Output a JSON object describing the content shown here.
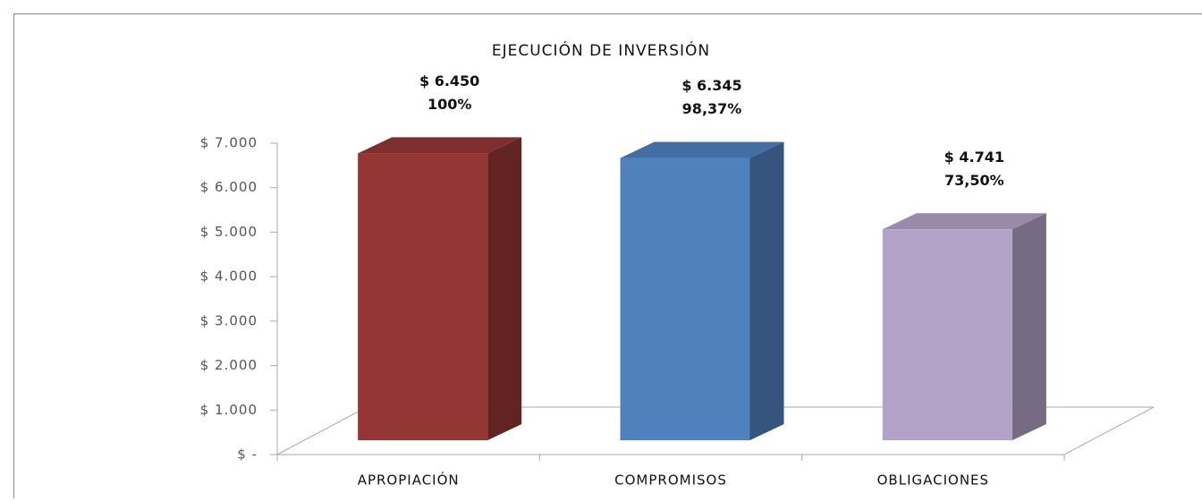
{
  "chart_data": {
    "type": "bar3d",
    "title": "EJECUCIÓN DE INVERSIÓN",
    "categories": [
      "APROPIACIÓN",
      "COMPROMISOS",
      "OBLIGACIONES"
    ],
    "values": [
      6450,
      6345,
      4741
    ],
    "value_labels": [
      "$ 6.450",
      "$ 6.345",
      "$ 4.741"
    ],
    "percentages": [
      100,
      98.37,
      73.5
    ],
    "percentage_labels": [
      "100%",
      "98,37%",
      "73,50%"
    ],
    "colors": [
      "#943634",
      "#4f81bd",
      "#b3a2c7"
    ],
    "ylim": [
      0,
      7000
    ],
    "yticks": [
      {
        "value": 0,
        "label": "$ -"
      },
      {
        "value": 1000,
        "label": "$ 1.000"
      },
      {
        "value": 2000,
        "label": "$ 2.000"
      },
      {
        "value": 3000,
        "label": "$ 3.000"
      },
      {
        "value": 4000,
        "label": "$ 4.000"
      },
      {
        "value": 5000,
        "label": "$ 5.000"
      },
      {
        "value": 6000,
        "label": "$ 6.000"
      },
      {
        "value": 7000,
        "label": "$ 7.000"
      }
    ]
  }
}
